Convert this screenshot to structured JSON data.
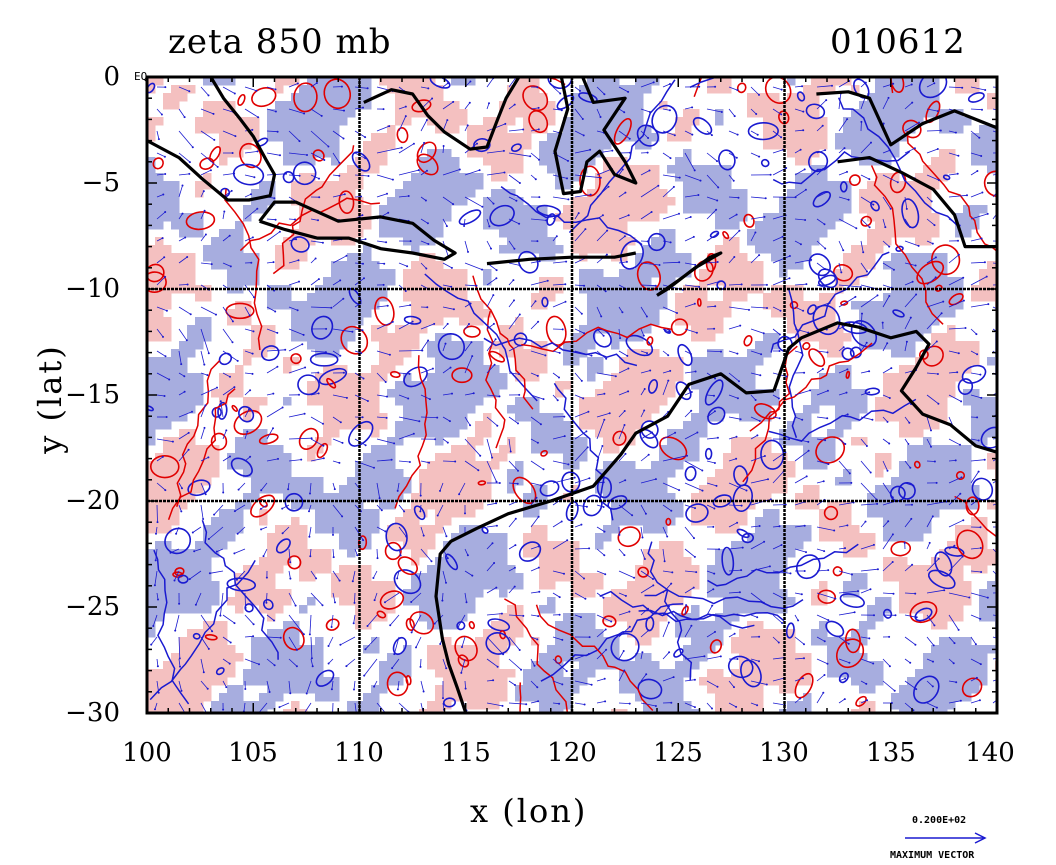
{
  "title": {
    "left": "zeta 850 mb",
    "right": "010612"
  },
  "axes": {
    "x_label": "x (lon)",
    "y_label": "y (lat)",
    "x_ticks": [
      "100",
      "105",
      "110",
      "115",
      "120",
      "125",
      "130",
      "135",
      "140"
    ],
    "y_ticks": [
      "0",
      "−5",
      "−10",
      "−15",
      "−20",
      "−25",
      "−30"
    ],
    "equator_label": "EQ"
  },
  "legend": {
    "vector_value": "0.200E+02",
    "vector_label": "MAXIMUM VECTOR"
  },
  "colors": {
    "positive_fill": "#f4c0c0",
    "positive_line": "#e00000",
    "negative_fill": "#a7addf",
    "negative_line": "#1a1ad0",
    "coast": "#000000",
    "grid": "#000000"
  },
  "map": {
    "lon_range": [
      100,
      140
    ],
    "lat_range": [
      -30,
      0
    ],
    "grid_lons": [
      110,
      120,
      130
    ],
    "grid_lats": [
      -10,
      -20
    ]
  }
}
